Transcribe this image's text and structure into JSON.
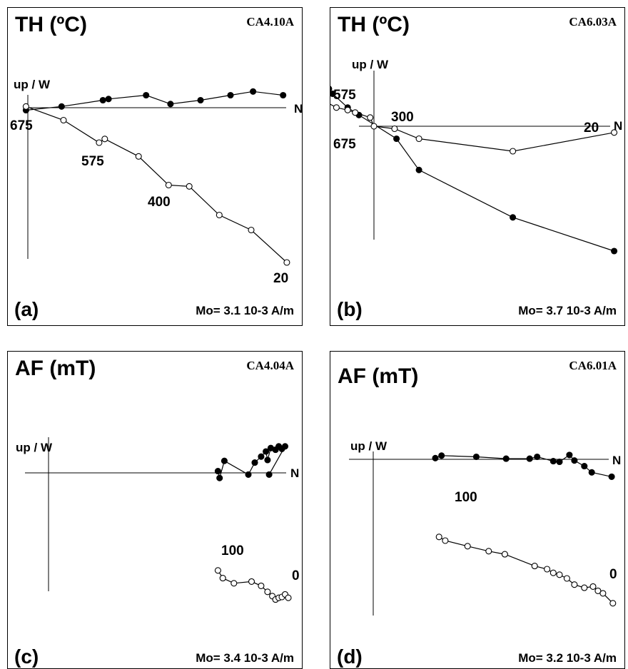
{
  "figure": {
    "panels": [
      {
        "id": "a",
        "method": "TH (ºC)",
        "sample": "CA4.10A",
        "label": "(a)",
        "mo": "Mo= 3.1 10-3 A/m"
      },
      {
        "id": "b",
        "method": "TH (ºC)",
        "sample": "CA6.03A",
        "label": "(b)",
        "mo": "Mo= 3.7 10-3 A/m"
      },
      {
        "id": "c",
        "method": "AF (mT)",
        "sample": "CA4.04A",
        "label": "(c)",
        "mo": "Mo= 3.4 10-3 A/m"
      },
      {
        "id": "d",
        "method": "AF (mT)",
        "sample": "CA6.01A",
        "label": "(d)",
        "mo": "Mo= 3.2 10-3 A/m"
      }
    ],
    "axis_labels": {
      "vertical": "up / W",
      "horizontal": "N"
    }
  },
  "chart_data": [
    {
      "type": "scatter",
      "panel": "a",
      "title": "TH (ºC)",
      "sample": "CA4.10A",
      "intensity": "Mo= 3.1 10-3 A/m",
      "axes": {
        "vertical": "up / W",
        "horizontal": "N"
      },
      "step_labels": [
        "675",
        "575",
        "400",
        "20"
      ],
      "series": [
        {
          "name": "horizontal",
          "marker": "filled",
          "points": [
            [
              -0.1,
              -0.2
            ],
            [
              1.8,
              0.1
            ],
            [
              4.0,
              0.6
            ],
            [
              4.3,
              0.7
            ],
            [
              6.3,
              1.0
            ],
            [
              7.6,
              0.3
            ],
            [
              9.2,
              0.6
            ],
            [
              10.8,
              1.0
            ],
            [
              12.0,
              1.3
            ],
            [
              13.6,
              1.0
            ]
          ]
        },
        {
          "name": "vertical",
          "marker": "open",
          "points": [
            [
              -0.1,
              0.1
            ],
            [
              1.9,
              -1.0
            ],
            [
              3.8,
              -2.8
            ],
            [
              4.1,
              -2.5
            ],
            [
              5.9,
              -3.9
            ],
            [
              7.5,
              -6.2
            ],
            [
              8.6,
              -6.3
            ],
            [
              10.2,
              -8.6
            ],
            [
              11.9,
              -9.8
            ],
            [
              13.8,
              -12.4
            ]
          ]
        }
      ]
    },
    {
      "type": "scatter",
      "panel": "b",
      "title": "TH (ºC)",
      "sample": "CA6.03A",
      "intensity": "Mo= 3.7 10-3 A/m",
      "axes": {
        "vertical": "up / W",
        "horizontal": "N"
      },
      "step_labels": [
        "575",
        "300",
        "675",
        "20"
      ],
      "series": [
        {
          "name": "horizontal",
          "marker": "filled",
          "points": [
            [
              -2.4,
              3.0
            ],
            [
              -2.2,
              2.6
            ],
            [
              -1.4,
              1.5
            ],
            [
              -0.8,
              0.9
            ],
            [
              1.2,
              -1.0
            ],
            [
              2.4,
              -3.5
            ],
            [
              7.4,
              -7.3
            ],
            [
              12.8,
              -10.0
            ]
          ]
        },
        {
          "name": "vertical",
          "marker": "open",
          "points": [
            [
              -2.5,
              1.9
            ],
            [
              -2.0,
              1.5
            ],
            [
              -1.4,
              1.3
            ],
            [
              -1.0,
              1.1
            ],
            [
              -0.2,
              0.7
            ],
            [
              0.0,
              0.0
            ],
            [
              1.1,
              -0.2
            ],
            [
              2.4,
              -1.0
            ],
            [
              7.4,
              -2.0
            ],
            [
              12.8,
              -0.5
            ]
          ]
        }
      ]
    },
    {
      "type": "scatter",
      "panel": "c",
      "title": "AF (mT)",
      "sample": "CA4.04A",
      "intensity": "Mo= 3.4 10-3 A/m",
      "axes": {
        "vertical": "up / W",
        "horizontal": "N"
      },
      "step_labels": [
        "100",
        "0"
      ],
      "series": [
        {
          "name": "horizontal",
          "marker": "filled",
          "points": [
            [
              10.6,
              0.2
            ],
            [
              10.7,
              -0.6
            ],
            [
              11.0,
              1.4
            ],
            [
              12.5,
              -0.2
            ],
            [
              12.9,
              1.2
            ],
            [
              13.3,
              1.9
            ],
            [
              13.6,
              2.5
            ],
            [
              13.7,
              1.5
            ],
            [
              13.9,
              2.9
            ],
            [
              14.2,
              2.7
            ],
            [
              14.4,
              3.1
            ],
            [
              14.6,
              2.8
            ],
            [
              14.8,
              3.1
            ],
            [
              13.8,
              -0.2
            ]
          ]
        },
        {
          "name": "vertical",
          "marker": "open",
          "points": [
            [
              10.6,
              -11.4
            ],
            [
              10.9,
              -12.3
            ],
            [
              11.6,
              -12.9
            ],
            [
              12.7,
              -12.7
            ],
            [
              13.3,
              -13.2
            ],
            [
              13.7,
              -13.9
            ],
            [
              14.0,
              -14.4
            ],
            [
              14.2,
              -14.8
            ],
            [
              14.4,
              -14.6
            ],
            [
              14.6,
              -14.5
            ],
            [
              14.8,
              -14.2
            ],
            [
              15.0,
              -14.6
            ]
          ]
        }
      ]
    },
    {
      "type": "scatter",
      "panel": "d",
      "title": "AF (mT)",
      "sample": "CA6.01A",
      "intensity": "Mo= 3.2 10-3 A/m",
      "axes": {
        "vertical": "up / W",
        "horizontal": "N"
      },
      "step_labels": [
        "100",
        "0"
      ],
      "series": [
        {
          "name": "horizontal",
          "marker": "filled",
          "points": [
            [
              5.0,
              0.2
            ],
            [
              5.5,
              0.6
            ],
            [
              8.3,
              0.4
            ],
            [
              10.7,
              0.1
            ],
            [
              12.6,
              0.1
            ],
            [
              13.2,
              0.4
            ],
            [
              14.5,
              -0.3
            ],
            [
              15.0,
              -0.4
            ],
            [
              15.8,
              0.7
            ],
            [
              16.2,
              -0.2
            ],
            [
              17.0,
              -1.1
            ],
            [
              17.6,
              -2.1
            ],
            [
              19.2,
              -2.8
            ]
          ]
        },
        {
          "name": "vertical",
          "marker": "open",
          "points": [
            [
              5.3,
              -12.5
            ],
            [
              5.8,
              -13.1
            ],
            [
              7.6,
              -14.0
            ],
            [
              9.3,
              -14.8
            ],
            [
              10.6,
              -15.3
            ],
            [
              13.0,
              -17.2
            ],
            [
              14.0,
              -17.7
            ],
            [
              14.5,
              -18.3
            ],
            [
              15.0,
              -18.6
            ],
            [
              15.6,
              -19.2
            ],
            [
              16.2,
              -20.2
            ],
            [
              17.0,
              -20.7
            ],
            [
              17.7,
              -20.5
            ],
            [
              18.1,
              -21.2
            ],
            [
              18.5,
              -21.6
            ],
            [
              19.3,
              -23.2
            ]
          ]
        }
      ]
    }
  ]
}
